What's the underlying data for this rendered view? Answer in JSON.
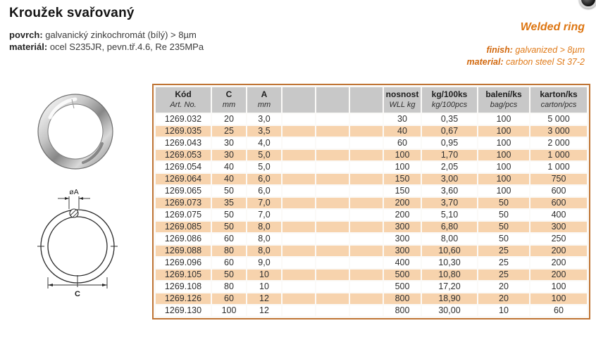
{
  "page": {
    "title_cs": "Kroužek svařovaný",
    "spec_cs": [
      {
        "label": "povrch:",
        "value": "galvanický zinkochromát (bílý) > 8µm"
      },
      {
        "label": "materiál:",
        "value": "ocel S235JR, pevn.tř.4.6, Re 235MPa"
      }
    ],
    "title_en": "Welded ring",
    "spec_en": [
      {
        "label": "finish:",
        "value": "galvanized > 8µm"
      },
      {
        "label": "material:",
        "value": "carbon steel St 37-2"
      }
    ]
  },
  "drawing": {
    "dim_a_label": "øA",
    "dim_c_label": "C"
  },
  "table": {
    "columns": [
      {
        "label": "Kód",
        "sublabel": "Art. No."
      },
      {
        "label": "C",
        "sublabel": "mm"
      },
      {
        "label": "A",
        "sublabel": "mm"
      },
      {
        "label": "",
        "sublabel": ""
      },
      {
        "label": "",
        "sublabel": ""
      },
      {
        "label": "",
        "sublabel": ""
      },
      {
        "label": "nosnost",
        "sublabel": "WLL kg"
      },
      {
        "label": "kg/100ks",
        "sublabel": "kg/100pcs"
      },
      {
        "label": "balení/ks",
        "sublabel": "bag/pcs"
      },
      {
        "label": "karton/ks",
        "sublabel": "carton/pcs"
      }
    ],
    "rows": [
      [
        "1269.032",
        "20",
        "3,0",
        "",
        "",
        "",
        "30",
        "0,35",
        "100",
        "5 000"
      ],
      [
        "1269.035",
        "25",
        "3,5",
        "",
        "",
        "",
        "40",
        "0,67",
        "100",
        "3 000"
      ],
      [
        "1269.043",
        "30",
        "4,0",
        "",
        "",
        "",
        "60",
        "0,95",
        "100",
        "2 000"
      ],
      [
        "1269.053",
        "30",
        "5,0",
        "",
        "",
        "",
        "100",
        "1,70",
        "100",
        "1 000"
      ],
      [
        "1269.054",
        "40",
        "5,0",
        "",
        "",
        "",
        "100",
        "2,05",
        "100",
        "1 000"
      ],
      [
        "1269.064",
        "40",
        "6,0",
        "",
        "",
        "",
        "150",
        "3,00",
        "100",
        "750"
      ],
      [
        "1269.065",
        "50",
        "6,0",
        "",
        "",
        "",
        "150",
        "3,60",
        "100",
        "600"
      ],
      [
        "1269.073",
        "35",
        "7,0",
        "",
        "",
        "",
        "200",
        "3,70",
        "50",
        "600"
      ],
      [
        "1269.075",
        "50",
        "7,0",
        "",
        "",
        "",
        "200",
        "5,10",
        "50",
        "400"
      ],
      [
        "1269.085",
        "50",
        "8,0",
        "",
        "",
        "",
        "300",
        "6,80",
        "50",
        "300"
      ],
      [
        "1269.086",
        "60",
        "8,0",
        "",
        "",
        "",
        "300",
        "8,00",
        "50",
        "250"
      ],
      [
        "1269.088",
        "80",
        "8,0",
        "",
        "",
        "",
        "300",
        "10,60",
        "25",
        "200"
      ],
      [
        "1269.096",
        "60",
        "9,0",
        "",
        "",
        "",
        "400",
        "10,30",
        "25",
        "200"
      ],
      [
        "1269.105",
        "50",
        "10",
        "",
        "",
        "",
        "500",
        "10,80",
        "25",
        "200"
      ],
      [
        "1269.108",
        "80",
        "10",
        "",
        "",
        "",
        "500",
        "17,20",
        "20",
        "100"
      ],
      [
        "1269.126",
        "60",
        "12",
        "",
        "",
        "",
        "800",
        "18,90",
        "20",
        "100"
      ],
      [
        "1269.130",
        "100",
        "12",
        "",
        "",
        "",
        "800",
        "30,00",
        "10",
        "60"
      ]
    ]
  },
  "colors": {
    "accent_orange": "#dd7511",
    "row_alt": "#f7d3ad",
    "header_bg": "#c8c8c8",
    "table_border": "#bf7434"
  }
}
